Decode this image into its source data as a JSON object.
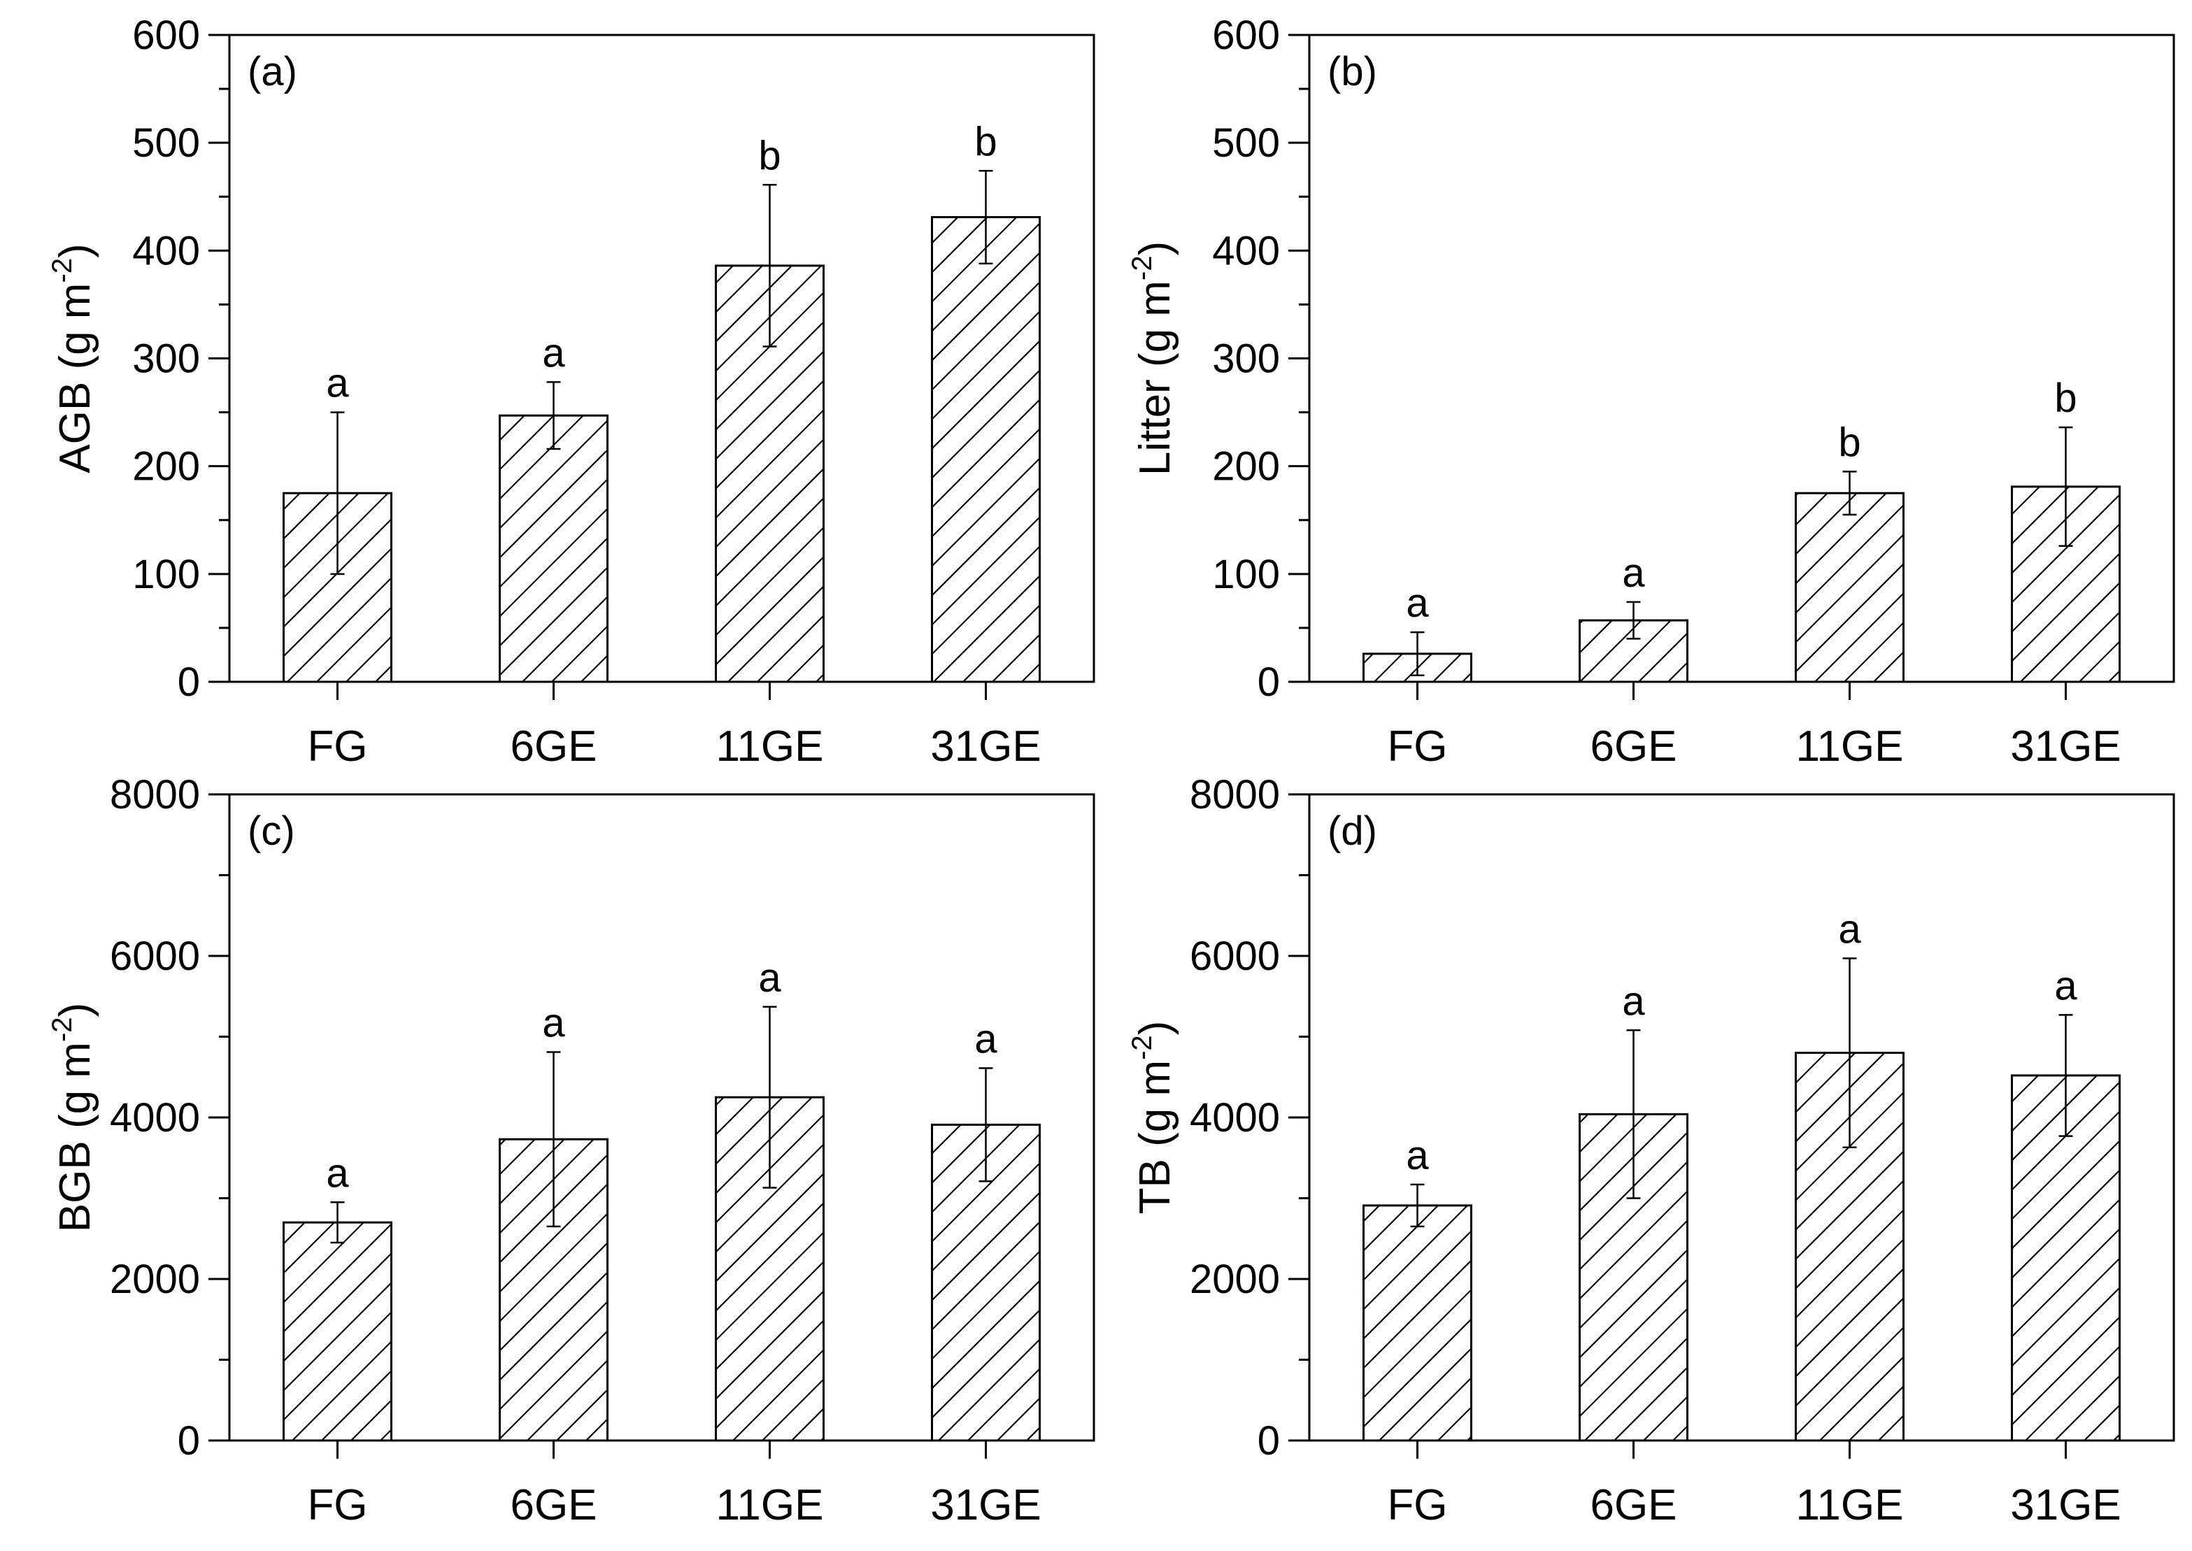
{
  "figure": {
    "panels": 4,
    "layout": "2x2 grid"
  },
  "colors": {
    "bar_fill": "#ffffff",
    "hatch": "#000000",
    "axis": "#000000"
  },
  "chart_data": [
    {
      "type": "bar",
      "panel_label": "(a)",
      "ylabel_main": "AGB (g m",
      "ylabel_sup": "-2",
      "ylabel_close": ")",
      "categories": [
        "FG",
        "6GE",
        "11GE",
        "31GE"
      ],
      "values": [
        175,
        247,
        386,
        431
      ],
      "errors": [
        75,
        31,
        75,
        43
      ],
      "letters": [
        "a",
        "a",
        "b",
        "b"
      ],
      "ylim": [
        0,
        600
      ],
      "yticks": [
        0,
        100,
        200,
        300,
        400,
        500,
        600
      ],
      "hatch": "diagonal"
    },
    {
      "type": "bar",
      "panel_label": "(b)",
      "ylabel_main": "Litter (g m",
      "ylabel_sup": "-2",
      "ylabel_close": ")",
      "categories": [
        "FG",
        "6GE",
        "11GE",
        "31GE"
      ],
      "values": [
        26,
        57,
        175,
        181
      ],
      "errors": [
        20,
        17,
        20,
        55
      ],
      "letters": [
        "a",
        "a",
        "b",
        "b"
      ],
      "ylim": [
        0,
        600
      ],
      "yticks": [
        0,
        100,
        200,
        300,
        400,
        500,
        600
      ],
      "hatch": "diagonal"
    },
    {
      "type": "bar",
      "panel_label": "(c)",
      "ylabel_main": "BGB (g m",
      "ylabel_sup": "-2",
      "ylabel_close": ")",
      "categories": [
        "FG",
        "6GE",
        "11GE",
        "31GE"
      ],
      "values": [
        2700,
        3730,
        4250,
        3910
      ],
      "errors": [
        250,
        1080,
        1120,
        700
      ],
      "letters": [
        "a",
        "a",
        "a",
        "a"
      ],
      "ylim": [
        0,
        8000
      ],
      "yticks": [
        0,
        2000,
        4000,
        6000,
        8000
      ],
      "hatch": "diagonal"
    },
    {
      "type": "bar",
      "panel_label": "(d)",
      "ylabel_main": "TB (g m",
      "ylabel_sup": "-2",
      "ylabel_close": ")",
      "categories": [
        "FG",
        "6GE",
        "11GE",
        "31GE"
      ],
      "values": [
        2910,
        4040,
        4800,
        4520
      ],
      "errors": [
        260,
        1040,
        1170,
        750
      ],
      "letters": [
        "a",
        "a",
        "a",
        "a"
      ],
      "ylim": [
        0,
        8000
      ],
      "yticks": [
        0,
        2000,
        4000,
        6000,
        8000
      ],
      "hatch": "diagonal"
    }
  ]
}
